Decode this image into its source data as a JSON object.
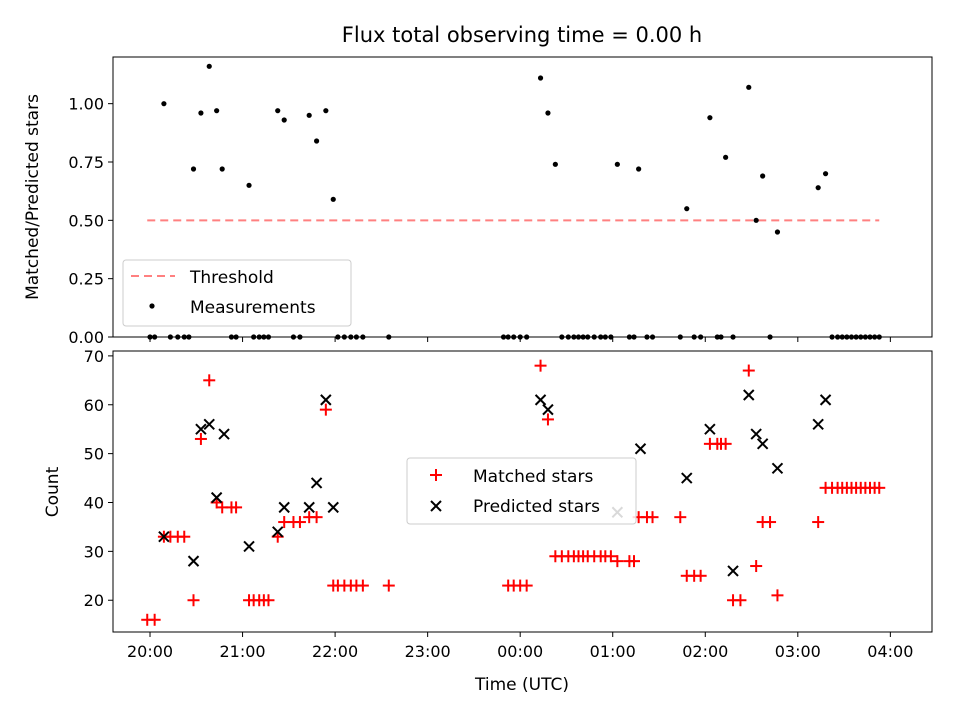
{
  "chart_data": [
    {
      "type": "scatter",
      "title": "Flux total observing time = 0.00 h",
      "ylabel": "Matched/Predicted stars",
      "xlabel": "",
      "ylim": [
        0,
        1.2
      ],
      "yticks": [
        0.0,
        0.25,
        0.5,
        0.75,
        1.0
      ],
      "ytick_labels": [
        "0.00",
        "0.25",
        "0.50",
        "0.75",
        "1.00"
      ],
      "xlim_hours": [
        19.6,
        28.45
      ],
      "xticks_hours": [
        20,
        21,
        22,
        23,
        24,
        25,
        26,
        27,
        28
      ],
      "xtick_labels": [],
      "legend_position": "lower-left",
      "legend": [
        "Threshold",
        "Measurements"
      ],
      "threshold": {
        "name": "Threshold",
        "value": 0.5,
        "x_range_hours": [
          19.97,
          27.88
        ],
        "color": "#ff8080",
        "style": "dashed"
      },
      "series": [
        {
          "name": "Measurements",
          "color": "#000000",
          "x_hours": [
            20.0,
            20.05,
            20.15,
            20.22,
            20.3,
            20.37,
            20.42,
            20.47,
            20.55,
            20.64,
            20.72,
            20.78,
            20.88,
            20.93,
            21.07,
            21.12,
            21.18,
            21.23,
            21.28,
            21.38,
            21.45,
            21.55,
            21.62,
            21.72,
            21.8,
            21.9,
            21.98,
            22.03,
            22.1,
            22.17,
            22.23,
            22.3,
            22.58,
            23.82,
            23.87,
            23.93,
            24.0,
            24.07,
            24.22,
            24.3,
            24.38,
            24.45,
            24.52,
            24.58,
            24.63,
            24.68,
            24.73,
            24.8,
            24.87,
            24.92,
            24.98,
            25.05,
            25.18,
            25.23,
            25.28,
            25.37,
            25.43,
            25.73,
            25.8,
            25.88,
            25.95,
            26.05,
            26.13,
            26.17,
            26.22,
            26.3,
            26.47,
            26.55,
            26.62,
            26.7,
            26.78,
            27.22,
            27.3,
            27.37,
            27.43,
            27.48,
            27.53,
            27.58,
            27.63,
            27.68,
            27.73,
            27.78,
            27.83,
            27.88
          ],
          "y": [
            0,
            0,
            1.0,
            0,
            0,
            0,
            0,
            0.72,
            0.96,
            1.16,
            0.97,
            0.72,
            0,
            0,
            0.65,
            0,
            0,
            0,
            0,
            0.97,
            0.93,
            0,
            0,
            0.95,
            0.84,
            0.97,
            0.59,
            0,
            0,
            0,
            0,
            0,
            0,
            0,
            0,
            0,
            0,
            0,
            1.11,
            0.96,
            0.74,
            0,
            0,
            0,
            0,
            0,
            0,
            0,
            0,
            0,
            0,
            0.74,
            0,
            0,
            0.72,
            0,
            0,
            0,
            0.55,
            0,
            0,
            0.94,
            0,
            0,
            0.77,
            0,
            1.07,
            0.5,
            0.69,
            0,
            0.45,
            0.64,
            0.7,
            0,
            0,
            0,
            0,
            0,
            0,
            0,
            0,
            0,
            0,
            0
          ]
        }
      ]
    },
    {
      "type": "scatter",
      "title": "",
      "ylabel": "Count",
      "xlabel": "Time (UTC)",
      "ylim": [
        13.5,
        71
      ],
      "yticks": [
        20,
        30,
        40,
        50,
        60,
        70
      ],
      "ytick_labels": [
        "20",
        "30",
        "40",
        "50",
        "60",
        "70"
      ],
      "xlim_hours": [
        19.6,
        28.45
      ],
      "xticks_hours": [
        20,
        21,
        22,
        23,
        24,
        25,
        26,
        27,
        28
      ],
      "xtick_labels": [
        "20:00",
        "21:00",
        "22:00",
        "23:00",
        "00:00",
        "01:00",
        "02:00",
        "03:00",
        "04:00"
      ],
      "legend_position": "center",
      "legend": [
        "Matched stars",
        "Predicted stars"
      ],
      "series": [
        {
          "name": "Matched stars",
          "marker": "plus",
          "color": "#ff0000",
          "x_hours": [
            19.97,
            20.05,
            20.15,
            20.22,
            20.3,
            20.37,
            20.47,
            20.55,
            20.64,
            20.72,
            20.78,
            20.88,
            20.93,
            21.07,
            21.12,
            21.18,
            21.23,
            21.28,
            21.38,
            21.45,
            21.55,
            21.62,
            21.72,
            21.8,
            21.9,
            21.98,
            22.03,
            22.1,
            22.17,
            22.23,
            22.3,
            22.58,
            23.87,
            23.93,
            24.0,
            24.07,
            24.22,
            24.3,
            24.38,
            24.45,
            24.52,
            24.58,
            24.63,
            24.68,
            24.73,
            24.8,
            24.87,
            24.92,
            24.98,
            25.05,
            25.18,
            25.23,
            25.28,
            25.37,
            25.43,
            25.73,
            25.8,
            25.88,
            25.95,
            26.05,
            26.13,
            26.17,
            26.22,
            26.3,
            26.38,
            26.47,
            26.55,
            26.62,
            26.7,
            26.78,
            27.22,
            27.3,
            27.37,
            27.43,
            27.48,
            27.53,
            27.58,
            27.63,
            27.68,
            27.73,
            27.78,
            27.83,
            27.88
          ],
          "y": [
            16,
            16,
            33,
            33,
            33,
            33,
            20,
            53,
            65,
            40,
            39,
            39,
            39,
            20,
            20,
            20,
            20,
            20,
            33,
            36,
            36,
            36,
            37,
            37,
            59,
            23,
            23,
            23,
            23,
            23,
            23,
            23,
            23,
            23,
            23,
            23,
            68,
            57,
            29,
            29,
            29,
            29,
            29,
            29,
            29,
            29,
            29,
            29,
            29,
            28,
            28,
            28,
            37,
            37,
            37,
            37,
            25,
            25,
            25,
            52,
            52,
            52,
            52,
            20,
            20,
            67,
            27,
            36,
            36,
            21,
            36,
            43,
            43,
            43,
            43,
            43,
            43,
            43,
            43,
            43,
            43,
            43,
            43
          ]
        },
        {
          "name": "Predicted stars",
          "marker": "x",
          "color": "#000000",
          "x_hours": [
            20.15,
            20.47,
            20.55,
            20.64,
            20.72,
            20.8,
            21.07,
            21.38,
            21.45,
            21.72,
            21.8,
            21.9,
            21.98,
            24.22,
            24.3,
            25.05,
            25.3,
            25.8,
            26.05,
            26.3,
            26.47,
            26.55,
            26.62,
            26.78,
            27.22,
            27.3
          ],
          "y": [
            33,
            28,
            55,
            56,
            41,
            54,
            31,
            34,
            39,
            39,
            44,
            61,
            39,
            61,
            59,
            38,
            51,
            45,
            55,
            26,
            62,
            54,
            52,
            47,
            56,
            61
          ]
        }
      ]
    }
  ]
}
